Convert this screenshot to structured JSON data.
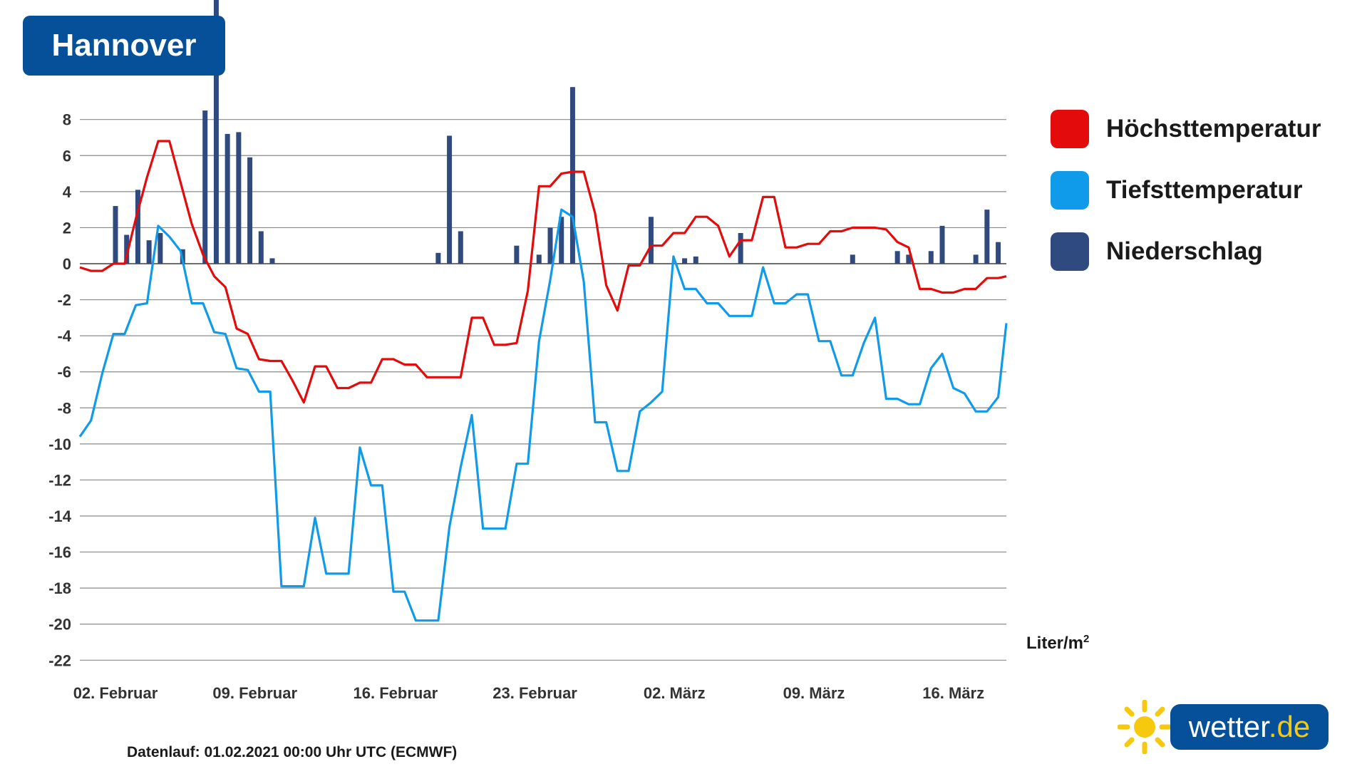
{
  "title": "Hannover",
  "legend": [
    {
      "label": "Höchsttemperatur",
      "color": "#e30b0b"
    },
    {
      "label": "Tiefsttemperatur",
      "color": "#0f9bea"
    },
    {
      "label": "Niederschlag",
      "color": "#2e4a7e"
    }
  ],
  "unit_main": "Liter/m",
  "unit_sup": "2",
  "footer": "Datenlauf: 01.02.2021 00:00 Uhr UTC (ECMWF)",
  "logo": {
    "text": "wetter",
    "suffix": ".de"
  },
  "chart_data": {
    "type": "line",
    "ylim": [
      -22,
      8
    ],
    "yticks": [
      8,
      6,
      4,
      2,
      0,
      -2,
      -4,
      -6,
      -8,
      -10,
      -12,
      -14,
      -16,
      -18,
      -20,
      -22
    ],
    "xlim_days": [
      0,
      45.5
    ],
    "x_ticks": [
      {
        "label": "02. Februar",
        "day": 1.75
      },
      {
        "label": "09. Februar",
        "day": 8.6
      },
      {
        "label": "16. Februar",
        "day": 15.5
      },
      {
        "label": "23. Februar",
        "day": 22.35
      },
      {
        "label": "02. März",
        "day": 29.2
      },
      {
        "label": "09. März",
        "day": 36.05
      },
      {
        "label": "16. März",
        "day": 42.9
      }
    ],
    "grid": true,
    "legend_position": "right",
    "series": [
      {
        "name": "Höchsttemperatur",
        "color": "#e30b0b",
        "points": [
          [
            0,
            -0.2
          ],
          [
            0.55,
            -0.4
          ],
          [
            1.1,
            -0.4
          ],
          [
            1.65,
            0
          ],
          [
            2.2,
            0
          ],
          [
            2.75,
            2.5
          ],
          [
            3.3,
            4.8
          ],
          [
            3.85,
            6.8
          ],
          [
            4.4,
            6.8
          ],
          [
            4.95,
            4.5
          ],
          [
            5.5,
            2.2
          ],
          [
            6.05,
            0.5
          ],
          [
            6.6,
            -0.7
          ],
          [
            7.15,
            -1.3
          ],
          [
            7.7,
            -3.6
          ],
          [
            8.25,
            -3.9
          ],
          [
            8.8,
            -5.3
          ],
          [
            9.35,
            -5.4
          ],
          [
            9.9,
            -5.4
          ],
          [
            10.45,
            -6.5
          ],
          [
            11,
            -7.7
          ],
          [
            11.55,
            -5.7
          ],
          [
            12.1,
            -5.7
          ],
          [
            12.65,
            -6.9
          ],
          [
            13.2,
            -6.9
          ],
          [
            13.75,
            -6.6
          ],
          [
            14.3,
            -6.6
          ],
          [
            14.85,
            -5.3
          ],
          [
            15.4,
            -5.3
          ],
          [
            15.95,
            -5.6
          ],
          [
            16.5,
            -5.6
          ],
          [
            17.05,
            -6.3
          ],
          [
            17.6,
            -6.3
          ],
          [
            18.15,
            -6.3
          ],
          [
            18.7,
            -6.3
          ],
          [
            19.25,
            -3
          ],
          [
            19.8,
            -3
          ],
          [
            20.35,
            -4.5
          ],
          [
            20.9,
            -4.5
          ],
          [
            21.45,
            -4.4
          ],
          [
            22,
            -1.5
          ],
          [
            22.55,
            4.3
          ],
          [
            23.1,
            4.3
          ],
          [
            23.65,
            5
          ],
          [
            24.2,
            5.1
          ],
          [
            24.75,
            5.1
          ],
          [
            25.3,
            2.8
          ],
          [
            25.85,
            -1.2
          ],
          [
            26.4,
            -2.6
          ],
          [
            26.95,
            -0.1
          ],
          [
            27.5,
            -0.1
          ],
          [
            28.05,
            1
          ],
          [
            28.6,
            1
          ],
          [
            29.15,
            1.7
          ],
          [
            29.7,
            1.7
          ],
          [
            30.25,
            2.6
          ],
          [
            30.8,
            2.6
          ],
          [
            31.35,
            2.1
          ],
          [
            31.9,
            0.4
          ],
          [
            32.45,
            1.3
          ],
          [
            33,
            1.3
          ],
          [
            33.55,
            3.7
          ],
          [
            34.1,
            3.7
          ],
          [
            34.65,
            0.9
          ],
          [
            35.2,
            0.9
          ],
          [
            35.75,
            1.1
          ],
          [
            36.3,
            1.1
          ],
          [
            36.85,
            1.8
          ],
          [
            37.4,
            1.8
          ],
          [
            37.95,
            2
          ],
          [
            38.5,
            2
          ],
          [
            39.05,
            2
          ],
          [
            39.6,
            1.9
          ],
          [
            40.15,
            1.2
          ],
          [
            40.7,
            0.9
          ],
          [
            41.25,
            -1.4
          ],
          [
            41.8,
            -1.4
          ],
          [
            42.35,
            -1.6
          ],
          [
            42.9,
            -1.6
          ],
          [
            43.45,
            -1.4
          ],
          [
            44,
            -1.4
          ],
          [
            44.55,
            -0.8
          ],
          [
            45.1,
            -0.8
          ],
          [
            45.5,
            -0.7
          ]
        ]
      },
      {
        "name": "Tiefsttemperatur",
        "color": "#0f9bea",
        "points": [
          [
            0,
            -9.6
          ],
          [
            0.55,
            -8.7
          ],
          [
            1.1,
            -6.1
          ],
          [
            1.65,
            -3.9
          ],
          [
            2.2,
            -3.9
          ],
          [
            2.75,
            -2.3
          ],
          [
            3.3,
            -2.2
          ],
          [
            3.85,
            2.1
          ],
          [
            4.4,
            1.5
          ],
          [
            4.95,
            0.7
          ],
          [
            5.5,
            -2.2
          ],
          [
            6.05,
            -2.2
          ],
          [
            6.6,
            -3.8
          ],
          [
            7.15,
            -3.9
          ],
          [
            7.7,
            -5.8
          ],
          [
            8.25,
            -5.9
          ],
          [
            8.8,
            -7.1
          ],
          [
            9.35,
            -7.1
          ],
          [
            9.9,
            -17.9
          ],
          [
            10.45,
            -17.9
          ],
          [
            11,
            -17.9
          ],
          [
            11.55,
            -14.1
          ],
          [
            12.1,
            -17.2
          ],
          [
            12.65,
            -17.2
          ],
          [
            13.2,
            -17.2
          ],
          [
            13.75,
            -10.2
          ],
          [
            14.3,
            -12.3
          ],
          [
            14.85,
            -12.3
          ],
          [
            15.4,
            -18.2
          ],
          [
            15.95,
            -18.2
          ],
          [
            16.5,
            -19.8
          ],
          [
            17.05,
            -19.8
          ],
          [
            17.6,
            -19.8
          ],
          [
            18.15,
            -14.6
          ],
          [
            18.7,
            -11.3
          ],
          [
            19.25,
            -8.4
          ],
          [
            19.8,
            -14.7
          ],
          [
            20.35,
            -14.7
          ],
          [
            20.9,
            -14.7
          ],
          [
            21.45,
            -11.1
          ],
          [
            22,
            -11.1
          ],
          [
            22.55,
            -4.3
          ],
          [
            23.1,
            -0.9
          ],
          [
            23.65,
            3
          ],
          [
            24.2,
            2.6
          ],
          [
            24.75,
            -1
          ],
          [
            25.3,
            -8.8
          ],
          [
            25.85,
            -8.8
          ],
          [
            26.4,
            -11.5
          ],
          [
            26.95,
            -11.5
          ],
          [
            27.5,
            -8.2
          ],
          [
            28.05,
            -7.7
          ],
          [
            28.6,
            -7.1
          ],
          [
            29.15,
            0.4
          ],
          [
            29.7,
            -1.4
          ],
          [
            30.25,
            -1.4
          ],
          [
            30.8,
            -2.2
          ],
          [
            31.35,
            -2.2
          ],
          [
            31.9,
            -2.9
          ],
          [
            32.45,
            -2.9
          ],
          [
            33,
            -2.9
          ],
          [
            33.55,
            -0.2
          ],
          [
            34.1,
            -2.2
          ],
          [
            34.65,
            -2.2
          ],
          [
            35.2,
            -1.7
          ],
          [
            35.75,
            -1.7
          ],
          [
            36.3,
            -4.3
          ],
          [
            36.85,
            -4.3
          ],
          [
            37.4,
            -6.2
          ],
          [
            37.95,
            -6.2
          ],
          [
            38.5,
            -4.4
          ],
          [
            39.05,
            -3
          ],
          [
            39.6,
            -7.5
          ],
          [
            40.15,
            -7.5
          ],
          [
            40.7,
            -7.8
          ],
          [
            41.25,
            -7.8
          ],
          [
            41.8,
            -5.8
          ],
          [
            42.35,
            -5
          ],
          [
            42.9,
            -6.9
          ],
          [
            43.45,
            -7.2
          ],
          [
            44,
            -8.2
          ],
          [
            44.55,
            -8.2
          ],
          [
            45.1,
            -7.4
          ],
          [
            45.5,
            -3.3
          ]
        ]
      }
    ],
    "bar_series": {
      "name": "Niederschlag",
      "color": "#2e4a7e",
      "bars": [
        [
          1.75,
          3.2
        ],
        [
          2.3,
          1.6
        ],
        [
          2.85,
          4.1
        ],
        [
          3.4,
          1.3
        ],
        [
          3.95,
          1.7
        ],
        [
          5.05,
          0.8
        ],
        [
          6.15,
          8.5
        ],
        [
          6.7,
          15
        ],
        [
          7.25,
          7.2
        ],
        [
          7.8,
          7.3
        ],
        [
          8.35,
          5.9
        ],
        [
          8.9,
          1.8
        ],
        [
          9.45,
          0.3
        ],
        [
          17.6,
          0.6
        ],
        [
          18.15,
          7.1
        ],
        [
          18.7,
          1.8
        ],
        [
          21.45,
          1
        ],
        [
          22.55,
          0.5
        ],
        [
          23.1,
          2
        ],
        [
          23.65,
          2.6
        ],
        [
          24.2,
          9.8
        ],
        [
          28.05,
          2.6
        ],
        [
          29.7,
          0.3
        ],
        [
          30.25,
          0.4
        ],
        [
          32.45,
          1.7
        ],
        [
          37.95,
          0.5
        ],
        [
          40.15,
          0.7
        ],
        [
          40.7,
          0.5
        ],
        [
          41.8,
          0.7
        ],
        [
          42.35,
          2.1
        ],
        [
          44,
          0.5
        ],
        [
          44.55,
          3
        ],
        [
          45.1,
          1.2
        ]
      ]
    }
  }
}
